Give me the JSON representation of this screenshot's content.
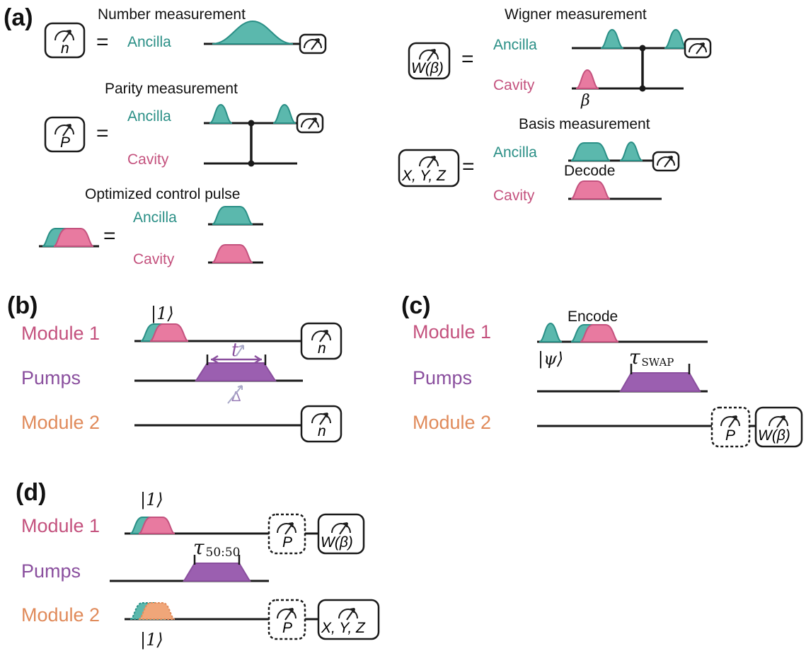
{
  "colors": {
    "ancilla": "#2a8f86",
    "ancilla_fill": "#5bb8ad",
    "cavity": "#c4527e",
    "cavity_fill": "#e87aa0",
    "pump": "#8a4f9e",
    "pump_fill": "#9b5fb0",
    "module2": "#e08a5a",
    "module2_fill": "#f0a679",
    "line": "#1a1a1a"
  },
  "panel_a": {
    "label": "(a)",
    "number_title": "Number measurement",
    "parity_title": "Parity measurement",
    "optimized_title": "Optimized control pulse",
    "wigner_title": "Wigner measurement",
    "basis_title": "Basis measurement",
    "ancilla": "Ancilla",
    "cavity": "Cavity",
    "equals": "=",
    "decode": "Decode",
    "n": "n",
    "P": "P",
    "W_beta": "W(β)",
    "XYZ": "X, Y, Z",
    "beta": "β"
  },
  "panel_b": {
    "label": "(b)",
    "module1": "Module 1",
    "pumps": "Pumps",
    "module2": "Module 2",
    "ket1": "|1⟩",
    "t": "t",
    "delta": "Δ",
    "n": "n"
  },
  "panel_c": {
    "label": "(c)",
    "module1": "Module 1",
    "pumps": "Pumps",
    "module2": "Module 2",
    "encode": "Encode",
    "ket_psi": "|ψ⟩",
    "tau_main": "τ",
    "tau_sub": "SWAP",
    "P": "P",
    "W_beta": "W(β)"
  },
  "panel_d": {
    "label": "(d)",
    "module1": "Module 1",
    "pumps": "Pumps",
    "module2": "Module 2",
    "ket1_top": "|1⟩",
    "ket1_bottom": "|1⟩",
    "tau_main": "τ",
    "tau_sub": "50:50",
    "P": "P",
    "W_beta": "W(β)",
    "XYZ": "X, Y, Z"
  }
}
